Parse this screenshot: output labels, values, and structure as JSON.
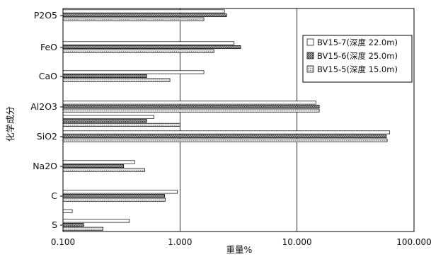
{
  "chart_data": {
    "type": "bar",
    "orientation": "horizontal",
    "x_scale": "log",
    "xlim": [
      0.1,
      100
    ],
    "x_ticks": [
      "0.100",
      "1.000",
      "10.000",
      "100.000"
    ],
    "xlabel": "重量%",
    "ylabel": "化学成分",
    "grid": "vertical major gridlines at each decade",
    "legend_position": "upper-right",
    "categories": [
      "P2O5",
      "FeO",
      "CaO",
      "Al2O3",
      "SiO2",
      "Na2O",
      "C",
      "S"
    ],
    "series": [
      {
        "name": "BV15-7(深度 22.0m)",
        "pattern": "white",
        "values": [
          2.4,
          2.9,
          1.6,
          14.5,
          62.0,
          0.41,
          0.95,
          0.37
        ]
      },
      {
        "name": "BV15-6(深度 25.0m)",
        "pattern": "dense-cross",
        "values": [
          2.5,
          3.3,
          0.52,
          15.5,
          58.0,
          0.33,
          0.74,
          0.15
        ]
      },
      {
        "name": "BV15-5(深度 15.0m)",
        "pattern": "light-dots",
        "values": [
          1.6,
          1.95,
          0.82,
          15.5,
          59.0,
          0.5,
          0.75,
          0.22
        ]
      }
    ],
    "extra_bars": [
      {
        "between": [
          "Al2O3",
          "SiO2"
        ],
        "values": [
          0.6,
          0.52,
          1.0
        ]
      },
      {
        "between": [
          "C",
          "S"
        ],
        "values": [
          0.12
        ]
      }
    ]
  }
}
